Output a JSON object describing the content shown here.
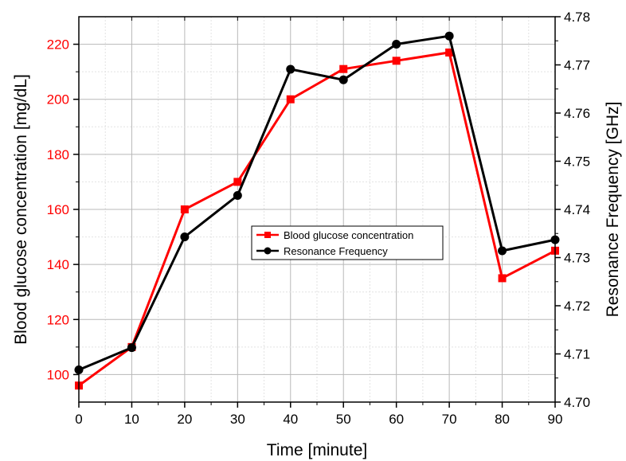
{
  "chart_data": {
    "type": "line",
    "title": "",
    "xlabel": "Time [minute]",
    "ylabel": "Blood glucose concentration [mg/dL]",
    "y2label": "Resonance Frequency [GHz]",
    "xlim": [
      0,
      90
    ],
    "ylim": [
      90,
      230
    ],
    "y2lim": [
      4.7,
      4.78
    ],
    "x_ticks": [
      "0",
      "10",
      "20",
      "30",
      "40",
      "50",
      "60",
      "70",
      "80",
      "90"
    ],
    "y_ticks": [
      "100",
      "120",
      "140",
      "160",
      "180",
      "200",
      "220"
    ],
    "y2_ticks": [
      "4.70",
      "4.71",
      "4.72",
      "4.73",
      "4.74",
      "4.75",
      "4.76",
      "4.77",
      "4.78"
    ],
    "grid": true,
    "legend_position": "center",
    "x": [
      0,
      10,
      20,
      30,
      40,
      50,
      60,
      70,
      80,
      90
    ],
    "series": [
      {
        "name": "Blood glucose concentration",
        "axis": "left",
        "color": "#ff0000",
        "marker": "square",
        "values": [
          96,
          110,
          160,
          170,
          200,
          211,
          214,
          217,
          135,
          145
        ]
      },
      {
        "name": "Resonance Frequency",
        "axis": "right",
        "color": "#000000",
        "marker": "circle",
        "values": [
          4.7067,
          4.7113,
          4.7343,
          4.7429,
          4.7691,
          4.7669,
          4.7743,
          4.776,
          4.7314,
          4.7337
        ]
      }
    ],
    "left_axis_color": "#ff0000",
    "right_axis_color": "#000000"
  }
}
